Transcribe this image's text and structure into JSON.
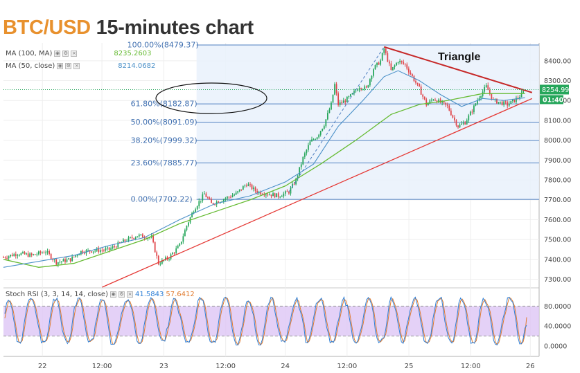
{
  "header": {
    "pair": "BTC/USD",
    "rest": "15-minutes chart"
  },
  "indicators": {
    "ma100": {
      "label": "MA (100, MA)",
      "value": "8235.2603",
      "color": "#66bb33"
    },
    "ma50": {
      "label": "MA (50, close)",
      "value": "8214.0682",
      "color": "#4a90c8"
    },
    "stoch": {
      "label": "Stoch RSI (3, 3, 14, 14, close)",
      "k_value": "41.5843",
      "d_value": "57.6412",
      "k_color": "#2e7fd6",
      "d_color": "#e07a2e"
    }
  },
  "annotations": {
    "pattern_label": "Triangle"
  },
  "price_tags": {
    "last": "8254.99",
    "countdown": "01:40"
  },
  "chart_data": {
    "type": "candlestick",
    "x_ticks": [
      "22",
      "12:00",
      "23",
      "12:00",
      "24",
      "12:00",
      "25",
      "12:00",
      "26"
    ],
    "y_ticks": [
      "8400.00",
      "8300.00",
      "8200.00",
      "8100.00",
      "8000.00",
      "7900.00",
      "7800.00",
      "7700.00",
      "7600.00",
      "7500.00",
      "7400.00",
      "7300.00"
    ],
    "ylim": [
      7260,
      8490
    ],
    "fib_levels": [
      {
        "label": "100.00%(8479.37)",
        "value": 8479.37
      },
      {
        "label": "61.80%(8182.87)",
        "value": 8182.87
      },
      {
        "label": "50.00%(8091.09)",
        "value": 8091.09
      },
      {
        "label": "38.20%(7999.32)",
        "value": 7999.32
      },
      {
        "label": "23.60%(7885.77)",
        "value": 7885.77
      },
      {
        "label": "0.00%(7702.22)",
        "value": 7702.22
      }
    ],
    "price_path": [
      [
        0,
        7410
      ],
      [
        4,
        7430
      ],
      [
        8,
        7420
      ],
      [
        12,
        7440
      ],
      [
        15,
        7385
      ],
      [
        19,
        7400
      ],
      [
        22,
        7440
      ],
      [
        26,
        7445
      ],
      [
        30,
        7450
      ],
      [
        34,
        7490
      ],
      [
        38,
        7520
      ],
      [
        42,
        7510
      ],
      [
        44,
        7380
      ],
      [
        47,
        7410
      ],
      [
        50,
        7470
      ],
      [
        52,
        7570
      ],
      [
        54,
        7650
      ],
      [
        57,
        7730
      ],
      [
        59,
        7680
      ],
      [
        62,
        7700
      ],
      [
        66,
        7730
      ],
      [
        69,
        7780
      ],
      [
        72,
        7740
      ],
      [
        75,
        7730
      ],
      [
        78,
        7720
      ],
      [
        81,
        7740
      ],
      [
        83,
        7800
      ],
      [
        85,
        7910
      ],
      [
        87,
        7990
      ],
      [
        89,
        8020
      ],
      [
        91,
        8080
      ],
      [
        93,
        8180
      ],
      [
        94,
        8280
      ],
      [
        95,
        8180
      ],
      [
        97,
        8200
      ],
      [
        99,
        8230
      ],
      [
        101,
        8270
      ],
      [
        103,
        8260
      ],
      [
        105,
        8360
      ],
      [
        107,
        8400
      ],
      [
        108,
        8460
      ],
      [
        110,
        8350
      ],
      [
        112,
        8400
      ],
      [
        114,
        8380
      ],
      [
        116,
        8320
      ],
      [
        118,
        8260
      ],
      [
        120,
        8180
      ],
      [
        122,
        8210
      ],
      [
        124,
        8190
      ],
      [
        126,
        8170
      ],
      [
        128,
        8100
      ],
      [
        129,
        8070
      ],
      [
        131,
        8090
      ],
      [
        133,
        8150
      ],
      [
        135,
        8220
      ],
      [
        137,
        8270
      ],
      [
        139,
        8200
      ],
      [
        141,
        8190
      ],
      [
        143,
        8180
      ],
      [
        145,
        8200
      ],
      [
        147,
        8230
      ],
      [
        148,
        8255
      ]
    ],
    "ma100": [
      [
        0,
        7400
      ],
      [
        10,
        7360
      ],
      [
        20,
        7380
      ],
      [
        30,
        7440
      ],
      [
        40,
        7500
      ],
      [
        50,
        7580
      ],
      [
        60,
        7640
      ],
      [
        70,
        7700
      ],
      [
        80,
        7770
      ],
      [
        90,
        7880
      ],
      [
        100,
        8000
      ],
      [
        110,
        8130
      ],
      [
        118,
        8180
      ],
      [
        126,
        8200
      ],
      [
        136,
        8235
      ],
      [
        148,
        8235
      ]
    ],
    "ma50": [
      [
        0,
        7360
      ],
      [
        10,
        7390
      ],
      [
        20,
        7420
      ],
      [
        30,
        7470
      ],
      [
        40,
        7510
      ],
      [
        50,
        7600
      ],
      [
        60,
        7680
      ],
      [
        70,
        7720
      ],
      [
        80,
        7790
      ],
      [
        88,
        7880
      ],
      [
        95,
        8070
      ],
      [
        102,
        8200
      ],
      [
        108,
        8320
      ],
      [
        112,
        8350
      ],
      [
        118,
        8300
      ],
      [
        124,
        8230
      ],
      [
        130,
        8170
      ],
      [
        136,
        8210
      ],
      [
        142,
        8200
      ],
      [
        148,
        8214
      ]
    ],
    "trendlines": {
      "triangle_upper": [
        [
          108,
          8470
        ],
        [
          150,
          8240
        ]
      ],
      "triangle_lower": [
        [
          28,
          7260
        ],
        [
          150,
          8210
        ]
      ]
    },
    "stoch_rsi": {
      "ylim": [
        0,
        100
      ],
      "y_ticks": [
        "80.0000",
        "40.0000",
        "0.0000"
      ],
      "band": [
        20,
        80
      ],
      "last_k": 41.58,
      "last_d": 57.64
    },
    "last_price": 8254.99
  }
}
